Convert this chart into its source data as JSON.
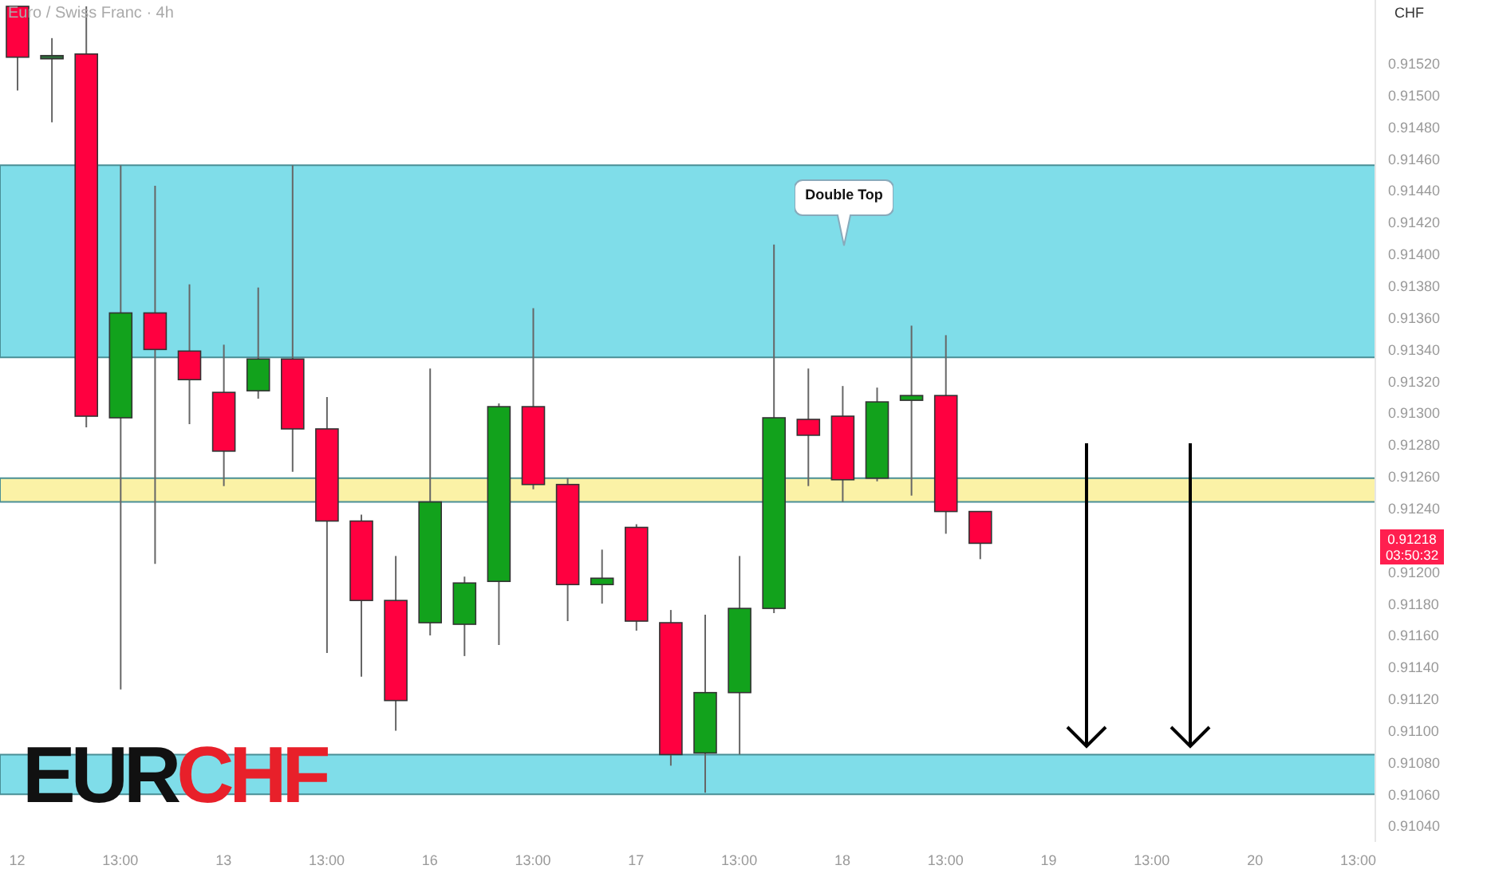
{
  "chart_data": {
    "type": "candlestick",
    "title": "EURCHF",
    "subtitle": "Euro / Swiss Franc · 4h",
    "ylabel": "CHF",
    "categories": [
      "12",
      null,
      null,
      "13:00",
      null,
      null,
      "13",
      null,
      null,
      "13:00",
      null,
      null,
      "16",
      null,
      null,
      "13:00",
      null,
      null,
      "17",
      null,
      null,
      "13:00",
      null,
      null,
      "18",
      null,
      null,
      "13:00",
      null,
      null,
      "19",
      null,
      null,
      "13:00",
      null,
      null,
      "20",
      null,
      null,
      "13:00"
    ],
    "ohlc": [
      [
        0.91556,
        0.91556,
        0.91503,
        0.91524
      ],
      [
        0.91525,
        0.91536,
        0.91483,
        0.91525
      ],
      [
        0.91526,
        0.91556,
        0.91291,
        0.91298
      ],
      [
        0.91297,
        0.91456,
        0.91126,
        0.91363
      ],
      [
        0.91363,
        0.91443,
        0.91205,
        0.9134
      ],
      [
        0.91339,
        0.91381,
        0.91293,
        0.91321
      ],
      [
        0.91313,
        0.91343,
        0.91254,
        0.91276
      ],
      [
        0.91314,
        0.91379,
        0.91309,
        0.91334
      ],
      [
        0.91334,
        0.91456,
        0.91263,
        0.9129
      ],
      [
        0.9129,
        0.9131,
        0.91149,
        0.91232
      ],
      [
        0.91232,
        0.91236,
        0.91134,
        0.91182
      ],
      [
        0.91182,
        0.9121,
        0.911,
        0.91119
      ],
      [
        0.91168,
        0.91328,
        0.9116,
        0.91244
      ],
      [
        0.91167,
        0.91197,
        0.91147,
        0.91193
      ],
      [
        0.91194,
        0.91306,
        0.91154,
        0.91304
      ],
      [
        0.91304,
        0.91366,
        0.91252,
        0.91255
      ],
      [
        0.91255,
        0.91259,
        0.91169,
        0.91192
      ],
      [
        0.91192,
        0.91214,
        0.9118,
        0.91196
      ],
      [
        0.91228,
        0.9123,
        0.91163,
        0.91169
      ],
      [
        0.91168,
        0.91176,
        0.91078,
        0.91085
      ],
      [
        0.91086,
        0.91173,
        0.91061,
        0.91124
      ],
      [
        0.91124,
        0.9121,
        0.91085,
        0.91177
      ],
      [
        0.91177,
        0.91406,
        0.91174,
        0.91297
      ],
      [
        0.91296,
        0.91328,
        0.91254,
        0.91286
      ],
      [
        0.91298,
        0.91317,
        0.91244,
        0.91258
      ],
      [
        0.91259,
        0.91316,
        0.91257,
        0.91307
      ],
      [
        0.91308,
        0.91355,
        0.91248,
        0.91311
      ],
      [
        0.91311,
        0.91349,
        0.91224,
        0.91238
      ],
      [
        0.91238,
        0.91238,
        0.91208,
        0.91218
      ],
      null,
      null,
      null,
      null,
      null,
      null,
      null,
      null,
      null,
      null,
      null
    ],
    "colors": [
      "#ff0040",
      "#2e6b3a",
      "#ff0040",
      "#12a21c",
      "#ff0040",
      "#ff0040",
      "#ff0040",
      "#12a21c",
      "#ff0040",
      "#ff0040",
      "#ff0040",
      "#ff0040",
      "#12a21c",
      "#12a21c",
      "#12a21c",
      "#ff0040",
      "#ff0040",
      "#12a21c",
      "#ff0040",
      "#ff0040",
      "#12a21c",
      "#12a21c",
      "#12a21c",
      "#ff0040",
      "#ff0040",
      "#12a21c",
      "#12a21c",
      "#ff0040",
      "#ff0040",
      null,
      null,
      null,
      null,
      null,
      null,
      null,
      null,
      null,
      null,
      null
    ],
    "ylim": [
      0.9103,
      0.9156
    ],
    "yticks": [
      {
        "value": 0.9104,
        "label": "0.91040"
      },
      {
        "value": 0.9106,
        "label": "0.91060"
      },
      {
        "value": 0.9108,
        "label": "0.91080"
      },
      {
        "value": 0.911,
        "label": "0.91100"
      },
      {
        "value": 0.9112,
        "label": "0.91120"
      },
      {
        "value": 0.9114,
        "label": "0.91140"
      },
      {
        "value": 0.9116,
        "label": "0.91160"
      },
      {
        "value": 0.9118,
        "label": "0.91180"
      },
      {
        "value": 0.912,
        "label": "0.91200"
      },
      {
        "value": 0.9124,
        "label": "0.91240"
      },
      {
        "value": 0.9126,
        "label": "0.91260"
      },
      {
        "value": 0.9128,
        "label": "0.91280"
      },
      {
        "value": 0.913,
        "label": "0.91300"
      },
      {
        "value": 0.9132,
        "label": "0.91320"
      },
      {
        "value": 0.9134,
        "label": "0.91340"
      },
      {
        "value": 0.9136,
        "label": "0.91360"
      },
      {
        "value": 0.9138,
        "label": "0.91380"
      },
      {
        "value": 0.914,
        "label": "0.91400"
      },
      {
        "value": 0.9142,
        "label": "0.91420"
      },
      {
        "value": 0.9144,
        "label": "0.91440"
      },
      {
        "value": 0.9146,
        "label": "0.91460"
      },
      {
        "value": 0.9148,
        "label": "0.91480"
      },
      {
        "value": 0.915,
        "label": "0.91500"
      },
      {
        "value": 0.9152,
        "label": "0.91520"
      }
    ],
    "bands": [
      {
        "axis": "y",
        "from": 0.91335,
        "to": 0.91456,
        "color": "#7fdde9"
      },
      {
        "axis": "y",
        "from": 0.9106,
        "to": 0.91085,
        "color": "#7fdde9"
      },
      {
        "axis": "y",
        "from": 0.91244,
        "to": 0.91259,
        "color": "#fbf2a6"
      }
    ],
    "annotations": [
      "Double Top",
      "0.91218",
      "03:50:32"
    ],
    "grid": false
  }
}
